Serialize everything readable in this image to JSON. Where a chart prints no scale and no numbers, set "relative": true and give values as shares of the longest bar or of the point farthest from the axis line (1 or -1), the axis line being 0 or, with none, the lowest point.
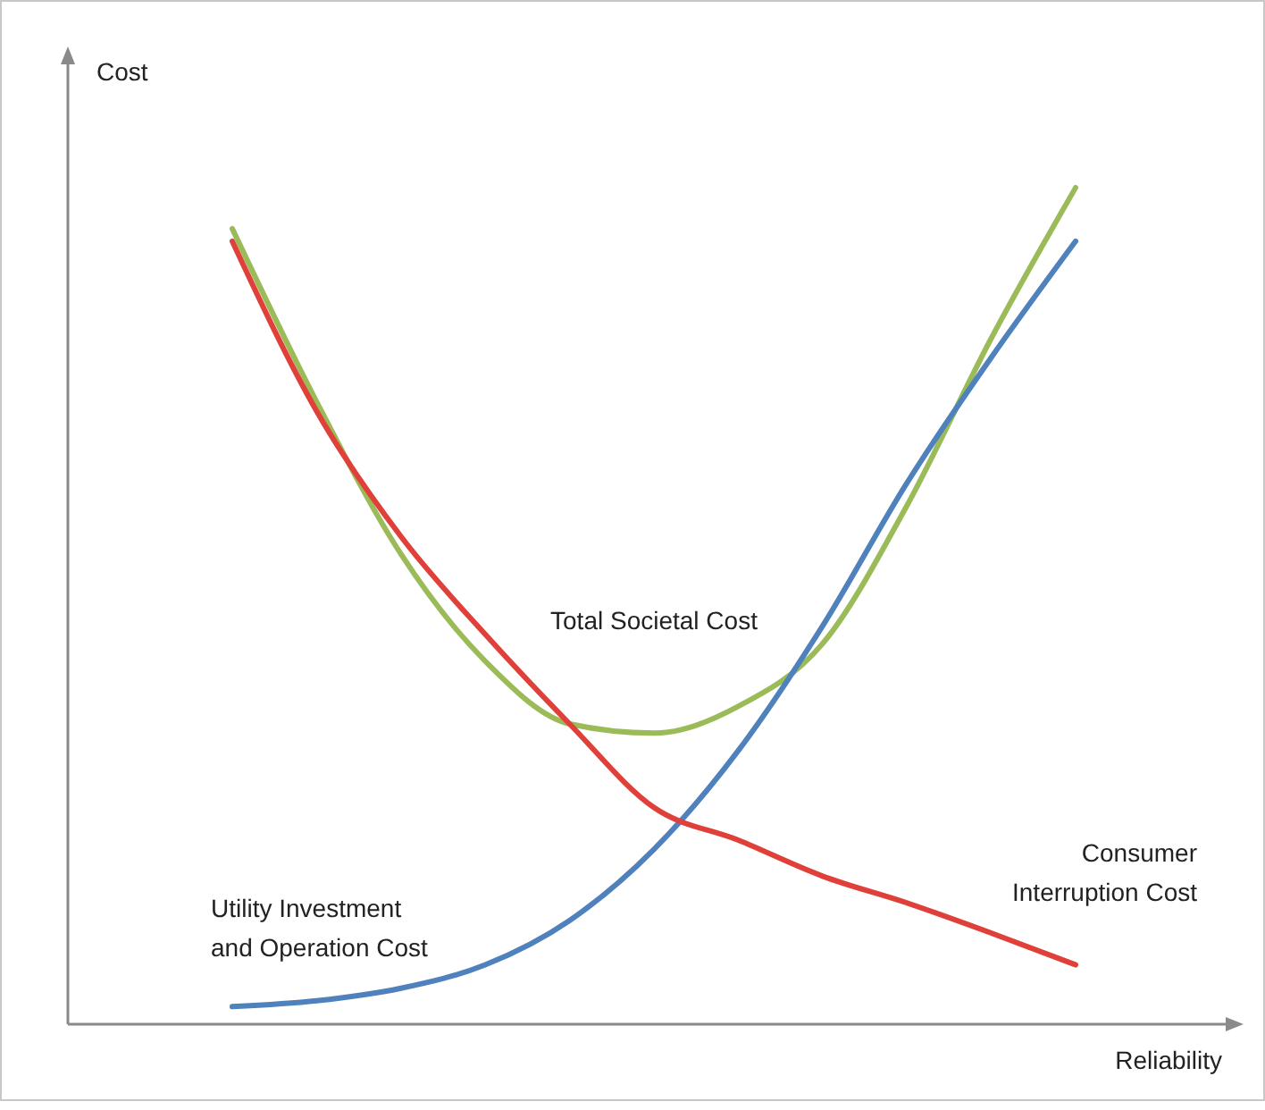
{
  "chart_data": {
    "type": "line",
    "xlabel": "Reliability",
    "ylabel": "Cost",
    "relative": true,
    "line_style": "solid",
    "categories": [
      null,
      null,
      null,
      null,
      null,
      null,
      null,
      null,
      null,
      null,
      null
    ],
    "series": [
      {
        "name": "Total Societal Cost",
        "color": "#9bbb59",
        "values": [
          0.951,
          0.744,
          0.562,
          0.434,
          0.359,
          0.348,
          0.38,
          0.455,
          0.62,
          0.82,
          1
        ]
      },
      {
        "name": "Utility Investment and Operation Cost",
        "color": "#4f81bd",
        "values": [
          0.021,
          0.028,
          0.043,
          0.071,
          0.124,
          0.209,
          0.327,
          0.476,
          0.647,
          0.797,
          0.936
        ]
      },
      {
        "name": "Consumer Interruption Cost",
        "color": "#e0403a",
        "values": [
          0.936,
          0.733,
          0.583,
          0.466,
          0.359,
          0.259,
          0.22,
          0.177,
          0.145,
          0.109,
          0.071
        ]
      }
    ]
  }
}
